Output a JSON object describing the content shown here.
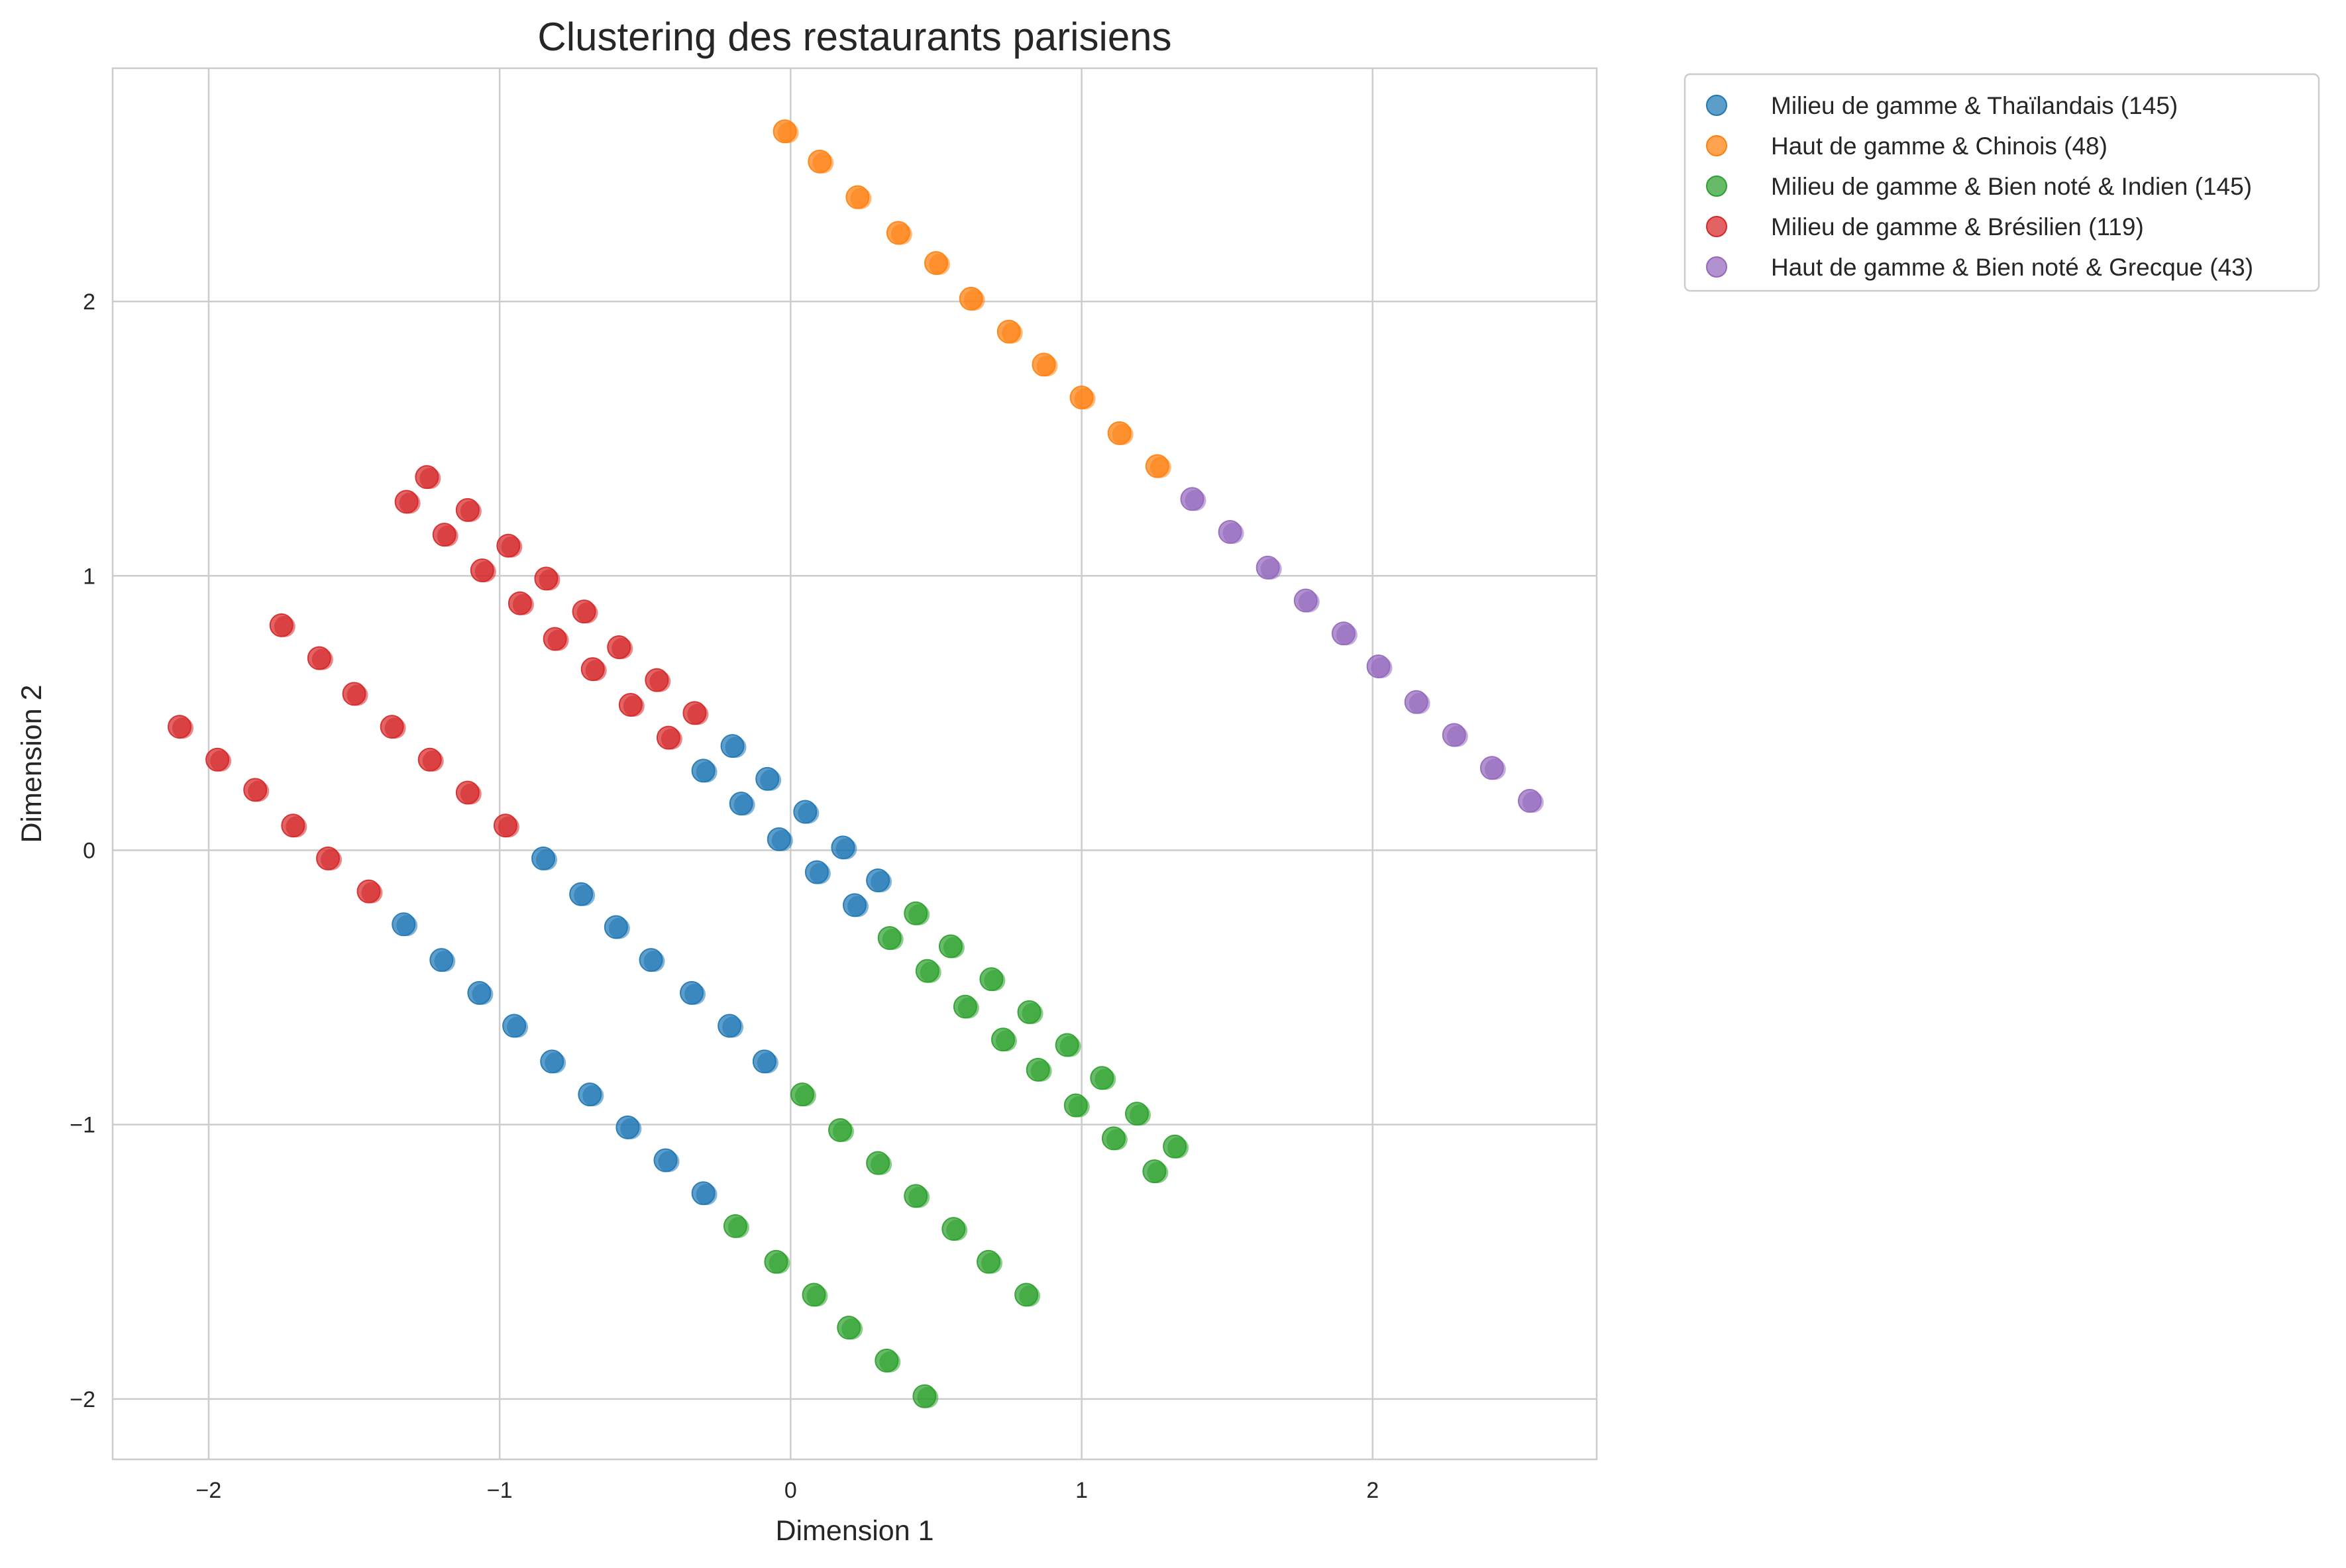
{
  "chart_data": {
    "type": "scatter",
    "title": "Clustering des restaurants parisiens",
    "xlabel": "Dimension 1",
    "ylabel": "Dimension 2",
    "xlim": [
      -2.33,
      2.77
    ],
    "ylim": [
      -2.22,
      2.85
    ],
    "xticks": [
      -2,
      -1,
      0,
      1,
      2
    ],
    "yticks": [
      -2,
      -1,
      0,
      1,
      2
    ],
    "xtick_labels": [
      "−2",
      "−1",
      "0",
      "1",
      "2"
    ],
    "ytick_labels": [
      "−2",
      "−1",
      "0",
      "1",
      "2"
    ],
    "grid": true,
    "legend_position": "outside-top-right",
    "series": [
      {
        "name": "Milieu de gamme & Thaïlandais (145)",
        "color": "#1f77b4",
        "points": [
          [
            -1.33,
            -0.27
          ],
          [
            -1.2,
            -0.4
          ],
          [
            -1.07,
            -0.52
          ],
          [
            -0.95,
            -0.64
          ],
          [
            -0.82,
            -0.77
          ],
          [
            -0.69,
            -0.89
          ],
          [
            -0.56,
            -1.01
          ],
          [
            -0.43,
            -1.13
          ],
          [
            -0.3,
            -1.25
          ],
          [
            -0.85,
            -0.03
          ],
          [
            -0.72,
            -0.16
          ],
          [
            -0.6,
            -0.28
          ],
          [
            -0.48,
            -0.4
          ],
          [
            -0.34,
            -0.52
          ],
          [
            -0.21,
            -0.64
          ],
          [
            -0.09,
            -0.77
          ],
          [
            -0.3,
            0.29
          ],
          [
            -0.2,
            0.38
          ],
          [
            -0.17,
            0.17
          ],
          [
            -0.08,
            0.26
          ],
          [
            -0.04,
            0.04
          ],
          [
            0.05,
            0.14
          ],
          [
            0.09,
            -0.08
          ],
          [
            0.18,
            0.01
          ],
          [
            0.22,
            -0.2
          ],
          [
            0.3,
            -0.11
          ]
        ]
      },
      {
        "name": "Haut de gamme & Chinois (48)",
        "color": "#ff7f0e",
        "points": [
          [
            -0.02,
            2.62
          ],
          [
            0.1,
            2.51
          ],
          [
            0.23,
            2.38
          ],
          [
            0.37,
            2.25
          ],
          [
            0.5,
            2.14
          ],
          [
            0.62,
            2.01
          ],
          [
            0.75,
            1.89
          ],
          [
            0.87,
            1.77
          ],
          [
            1.0,
            1.65
          ],
          [
            1.13,
            1.52
          ],
          [
            1.26,
            1.4
          ]
        ]
      },
      {
        "name": "Milieu de gamme & Bien noté & Indien (145)",
        "color": "#2ca02c",
        "points": [
          [
            0.04,
            -0.89
          ],
          [
            0.17,
            -1.02
          ],
          [
            0.3,
            -1.14
          ],
          [
            0.43,
            -1.26
          ],
          [
            0.56,
            -1.38
          ],
          [
            0.68,
            -1.5
          ],
          [
            0.81,
            -1.62
          ],
          [
            -0.19,
            -1.37
          ],
          [
            -0.05,
            -1.5
          ],
          [
            0.08,
            -1.62
          ],
          [
            0.2,
            -1.74
          ],
          [
            0.33,
            -1.86
          ],
          [
            0.46,
            -1.99
          ],
          [
            0.34,
            -0.32
          ],
          [
            0.43,
            -0.23
          ],
          [
            0.47,
            -0.44
          ],
          [
            0.55,
            -0.35
          ],
          [
            0.6,
            -0.57
          ],
          [
            0.69,
            -0.47
          ],
          [
            0.73,
            -0.69
          ],
          [
            0.82,
            -0.59
          ],
          [
            0.85,
            -0.8
          ],
          [
            0.95,
            -0.71
          ],
          [
            0.98,
            -0.93
          ],
          [
            1.07,
            -0.83
          ],
          [
            1.11,
            -1.05
          ],
          [
            1.19,
            -0.96
          ],
          [
            1.25,
            -1.17
          ],
          [
            1.32,
            -1.08
          ]
        ]
      },
      {
        "name": "Milieu de gamme & Brésilien (119)",
        "color": "#d62728",
        "points": [
          [
            -2.1,
            0.45
          ],
          [
            -1.97,
            0.33
          ],
          [
            -1.84,
            0.22
          ],
          [
            -1.71,
            0.09
          ],
          [
            -1.59,
            -0.03
          ],
          [
            -1.45,
            -0.15
          ],
          [
            -1.75,
            0.82
          ],
          [
            -1.62,
            0.7
          ],
          [
            -1.5,
            0.57
          ],
          [
            -1.37,
            0.45
          ],
          [
            -1.24,
            0.33
          ],
          [
            -1.11,
            0.21
          ],
          [
            -0.98,
            0.09
          ],
          [
            -1.32,
            1.27
          ],
          [
            -1.25,
            1.36
          ],
          [
            -1.19,
            1.15
          ],
          [
            -1.11,
            1.24
          ],
          [
            -1.06,
            1.02
          ],
          [
            -0.97,
            1.11
          ],
          [
            -0.93,
            0.9
          ],
          [
            -0.84,
            0.99
          ],
          [
            -0.81,
            0.77
          ],
          [
            -0.71,
            0.87
          ],
          [
            -0.68,
            0.66
          ],
          [
            -0.59,
            0.74
          ],
          [
            -0.55,
            0.53
          ],
          [
            -0.46,
            0.62
          ],
          [
            -0.42,
            0.41
          ],
          [
            -0.33,
            0.5
          ]
        ]
      },
      {
        "name": "Haut de gamme & Bien noté & Grecque (43)",
        "color": "#9467bd",
        "points": [
          [
            1.38,
            1.28
          ],
          [
            1.51,
            1.16
          ],
          [
            1.64,
            1.03
          ],
          [
            1.77,
            0.91
          ],
          [
            1.9,
            0.79
          ],
          [
            2.02,
            0.67
          ],
          [
            2.15,
            0.54
          ],
          [
            2.28,
            0.42
          ],
          [
            2.41,
            0.3
          ],
          [
            2.54,
            0.18
          ]
        ]
      }
    ]
  }
}
